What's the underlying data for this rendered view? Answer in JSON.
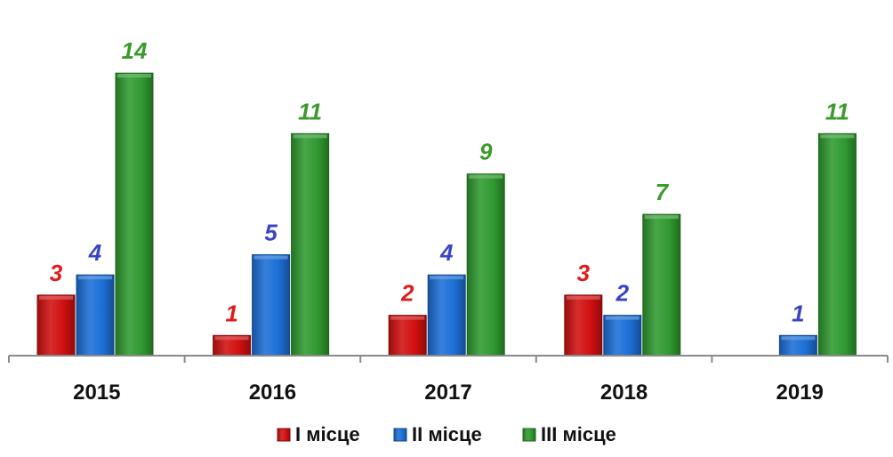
{
  "chart_data": {
    "type": "bar",
    "title": "",
    "xlabel": "",
    "ylabel": "",
    "categories": [
      "2015",
      "2016",
      "2017",
      "2018",
      "2019"
    ],
    "series": [
      {
        "name": "I місце",
        "values": [
          3,
          1,
          2,
          3,
          null
        ],
        "color": "#d01010",
        "label_color": "#e01b1b"
      },
      {
        "name": "II місце",
        "values": [
          4,
          5,
          4,
          2,
          1
        ],
        "color": "#1c6fd6",
        "label_color": "#3b44c6"
      },
      {
        "name": "III місце",
        "values": [
          14,
          11,
          9,
          7,
          11
        ],
        "color": "#2f9a2f",
        "label_color": "#3a9a2a"
      }
    ],
    "ylim": [
      0,
      14
    ],
    "grid": false,
    "legend": "bottom"
  }
}
